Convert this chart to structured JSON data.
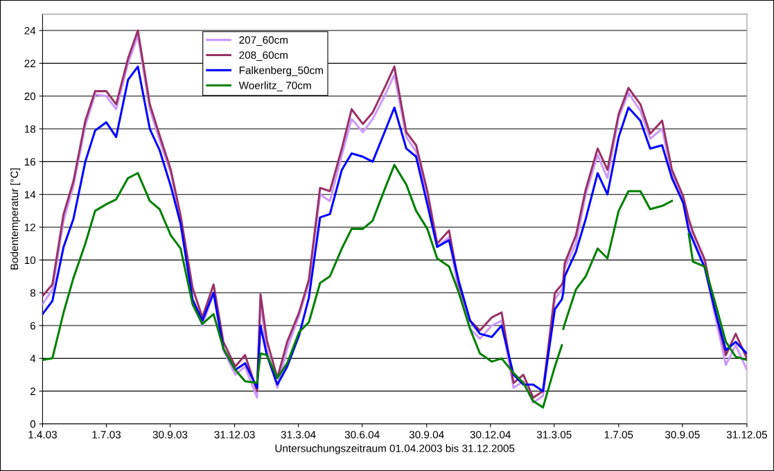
{
  "chart_data": {
    "type": "line",
    "xlabel": "Untersuchungszeitraum 01.04.2003 bis 31.12.2005",
    "ylabel": "Bodentemperatur [°C]",
    "x": [
      "2003-04-01",
      "2003-04-15",
      "2003-05-01",
      "2003-05-15",
      "2003-06-01",
      "2003-06-15",
      "2003-07-01",
      "2003-07-15",
      "2003-08-01",
      "2003-08-15",
      "2003-09-01",
      "2003-09-15",
      "2003-10-01",
      "2003-10-15",
      "2003-11-01",
      "2003-11-15",
      "2003-12-01",
      "2003-12-15",
      "2004-01-01",
      "2004-01-15",
      "2004-02-01",
      "2004-02-06",
      "2004-02-15",
      "2004-03-01",
      "2004-03-15",
      "2004-04-01",
      "2004-04-15",
      "2004-05-01",
      "2004-05-15",
      "2004-06-01",
      "2004-06-15",
      "2004-07-01",
      "2004-07-15",
      "2004-08-01",
      "2004-08-15",
      "2004-09-01",
      "2004-09-15",
      "2004-10-01",
      "2004-10-15",
      "2004-11-01",
      "2004-11-15",
      "2004-12-01",
      "2004-12-15",
      "2005-01-01",
      "2005-01-15",
      "2005-02-01",
      "2005-02-15",
      "2005-03-01",
      "2005-03-15",
      "2005-04-01",
      "2005-04-11",
      "2005-04-12",
      "2005-04-13",
      "2005-04-15",
      "2005-05-01",
      "2005-05-15",
      "2005-06-01",
      "2005-06-15",
      "2005-07-01",
      "2005-07-15",
      "2005-08-01",
      "2005-08-15",
      "2005-09-01",
      "2005-09-15",
      "2005-10-01",
      "2005-10-09",
      "2005-10-15",
      "2005-11-01",
      "2005-11-15",
      "2005-12-01",
      "2005-12-15",
      "2005-12-31"
    ],
    "series": [
      {
        "name": "207_60cm",
        "color": "#cc99ff",
        "values": [
          7.3,
          8.2,
          12.4,
          14.5,
          18.2,
          20.1,
          20.0,
          19.2,
          22.0,
          23.7,
          19.2,
          17.3,
          15.3,
          12.5,
          7.4,
          6.0,
          8.0,
          4.5,
          3.0,
          3.5,
          1.6,
          7.5,
          4.5,
          2.2,
          4.6,
          6.6,
          8.6,
          14.0,
          13.6,
          16.4,
          18.6,
          17.8,
          18.6,
          20.0,
          21.3,
          17.5,
          16.6,
          14.0,
          10.8,
          11.4,
          8.0,
          5.8,
          5.2,
          6.0,
          6.3,
          2.2,
          2.6,
          1.3,
          1.7,
          7.6,
          8.2,
          8.3,
          8.4,
          9.5,
          11.0,
          14.0,
          16.4,
          15.0,
          18.7,
          20.2,
          19.1,
          17.4,
          18.0,
          15.2,
          13.7,
          12.0,
          11.3,
          9.6,
          6.7,
          3.6,
          4.8,
          3.3
        ]
      },
      {
        "name": "208_60cm",
        "color": "#993366",
        "values": [
          7.8,
          8.5,
          12.8,
          14.8,
          18.5,
          20.3,
          20.3,
          19.5,
          22.3,
          24.0,
          19.5,
          17.6,
          15.5,
          12.7,
          8.3,
          6.5,
          8.5,
          5.0,
          3.5,
          4.2,
          2.0,
          7.9,
          5.1,
          2.8,
          5.0,
          6.8,
          8.8,
          14.4,
          14.2,
          16.8,
          19.2,
          18.3,
          19.0,
          20.5,
          21.8,
          17.8,
          17.0,
          14.2,
          11.0,
          11.8,
          8.5,
          6.3,
          5.7,
          6.5,
          6.8,
          2.5,
          3.0,
          1.6,
          2.0,
          8.0,
          8.5,
          8.6,
          8.8,
          9.8,
          11.5,
          14.3,
          16.8,
          15.5,
          18.9,
          20.5,
          19.5,
          17.7,
          18.5,
          15.5,
          13.9,
          12.5,
          11.7,
          10.0,
          7.0,
          4.2,
          5.5,
          4.0
        ]
      },
      {
        "name": "Falkenberg_50cm",
        "color": "#0000ff",
        "values": [
          6.7,
          7.5,
          10.8,
          12.5,
          16.0,
          17.9,
          18.4,
          17.5,
          21.0,
          21.8,
          18.0,
          16.7,
          14.5,
          12.2,
          7.6,
          6.3,
          8.0,
          4.6,
          3.3,
          3.7,
          2.2,
          6.0,
          4.2,
          2.4,
          3.5,
          5.4,
          7.7,
          12.6,
          12.8,
          15.5,
          16.5,
          16.3,
          16.0,
          17.8,
          19.3,
          16.8,
          16.3,
          13.4,
          10.8,
          11.2,
          8.7,
          6.3,
          5.5,
          5.3,
          6.0,
          3.0,
          2.4,
          2.4,
          2.0,
          7.0,
          7.6,
          7.8,
          8.0,
          9.0,
          10.5,
          12.5,
          15.3,
          14.0,
          17.5,
          19.3,
          18.5,
          16.8,
          17.0,
          15.0,
          13.5,
          11.8,
          11.2,
          9.5,
          7.0,
          4.5,
          5.0,
          4.3
        ]
      },
      {
        "name": "Woerlitz_ 70cm",
        "color": "#008000",
        "values": [
          3.9,
          4.0,
          6.8,
          8.9,
          11.0,
          13.0,
          13.4,
          13.7,
          15.0,
          15.3,
          13.6,
          13.1,
          11.5,
          10.7,
          7.3,
          6.1,
          6.7,
          4.6,
          3.3,
          2.6,
          2.5,
          4.3,
          4.2,
          2.8,
          3.7,
          5.6,
          6.2,
          8.6,
          9.0,
          10.7,
          11.9,
          11.9,
          12.4,
          14.3,
          15.8,
          14.6,
          13.0,
          11.9,
          10.1,
          9.6,
          8.0,
          5.8,
          4.3,
          3.8,
          4.0,
          3.1,
          2.5,
          1.4,
          1.0,
          3.5,
          4.8,
          null,
          5.8,
          6.1,
          8.2,
          9.0,
          10.7,
          10.1,
          13.0,
          14.2,
          14.2,
          13.1,
          13.3,
          13.6,
          null,
          11.6,
          9.9,
          9.6,
          7.5,
          5.0,
          4.1,
          3.9
        ]
      }
    ],
    "xlim": [
      "2003-04-01",
      "2005-12-31"
    ],
    "xticks": [
      {
        "value": "2003-04-01",
        "label": "1.4.03"
      },
      {
        "value": "2003-07-01",
        "label": "1.7.03"
      },
      {
        "value": "2003-09-30",
        "label": "30.9.03"
      },
      {
        "value": "2003-12-31",
        "label": "31.12.03"
      },
      {
        "value": "2004-03-31",
        "label": "31.3.04"
      },
      {
        "value": "2004-06-30",
        "label": "30.6.04"
      },
      {
        "value": "2004-09-30",
        "label": "30.9.04"
      },
      {
        "value": "2004-12-30",
        "label": "30.12.04"
      },
      {
        "value": "2005-03-31",
        "label": "31.3.05"
      },
      {
        "value": "2005-07-01",
        "label": "1.7.05"
      },
      {
        "value": "2005-09-30",
        "label": "30.9.05"
      },
      {
        "value": "2005-12-31",
        "label": "31.12.05"
      }
    ],
    "ylim": [
      0,
      25
    ],
    "yticks": [
      0,
      2,
      4,
      6,
      8,
      10,
      12,
      14,
      16,
      18,
      20,
      22,
      24
    ],
    "grid": "y",
    "legend": "top left",
    "line_style": "solid",
    "marker": "none"
  }
}
